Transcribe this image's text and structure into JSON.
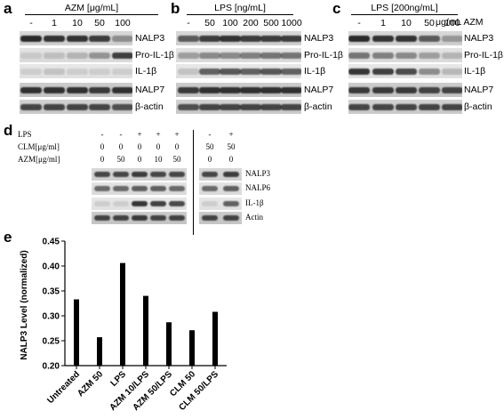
{
  "panel_a": {
    "letter": "a",
    "header": "AZM [μg/mL]",
    "lanes": [
      "-",
      "1",
      "10",
      "50",
      "100"
    ],
    "bands": [
      "NALP3",
      "Pro-IL-1β",
      "IL-1β",
      "NALP7",
      "β-actin"
    ]
  },
  "panel_b": {
    "letter": "b",
    "header": "LPS [ng/mL]",
    "lanes": [
      "-",
      "50",
      "100",
      "200",
      "500",
      "1000"
    ],
    "bands": [
      "NALP3",
      "Pro-IL-1β",
      "IL-1β",
      "NALP7",
      "β-actin"
    ]
  },
  "panel_c": {
    "letter": "c",
    "header": "LPS [200ng/mL]",
    "lanes": [
      "-",
      "1",
      "10",
      "50",
      "100"
    ],
    "unit": "μg/mL AZM",
    "bands": [
      "NALP3",
      "Pro-IL-1β",
      "IL-1β",
      "NALP7",
      "β-actin"
    ]
  },
  "panel_d": {
    "letter": "d",
    "row_labels": [
      "LPS",
      "CLM[μg/ml]",
      "AZM[μg/ml]"
    ],
    "lps": [
      "-",
      "-",
      "+",
      "+",
      "+",
      "-",
      "+"
    ],
    "clm": [
      "0",
      "0",
      "0",
      "0",
      "0",
      "50",
      "50"
    ],
    "azm": [
      "0",
      "50",
      "0",
      "10",
      "50",
      "0",
      "0"
    ],
    "bands": [
      "NALP3",
      "NALP6",
      "IL-1β",
      "Actin"
    ]
  },
  "panel_e": {
    "letter": "e"
  },
  "chart_data": {
    "type": "bar",
    "categories": [
      "Untreated",
      "AZM 50",
      "LPS",
      "AZM 10/LPS",
      "AZM 50/LPS",
      "CLM 50",
      "CLM 50/LPS"
    ],
    "values": [
      0.333,
      0.257,
      0.406,
      0.34,
      0.287,
      0.271,
      0.308
    ],
    "ylabel": "NALP3 Level (normalized)",
    "xlabel": "",
    "ylim": [
      0.2,
      0.45
    ],
    "yticks": [
      "0.20",
      "0.25",
      "0.30",
      "0.35",
      "0.40",
      "0.45"
    ],
    "grid": false,
    "bar_color": "#000000"
  }
}
